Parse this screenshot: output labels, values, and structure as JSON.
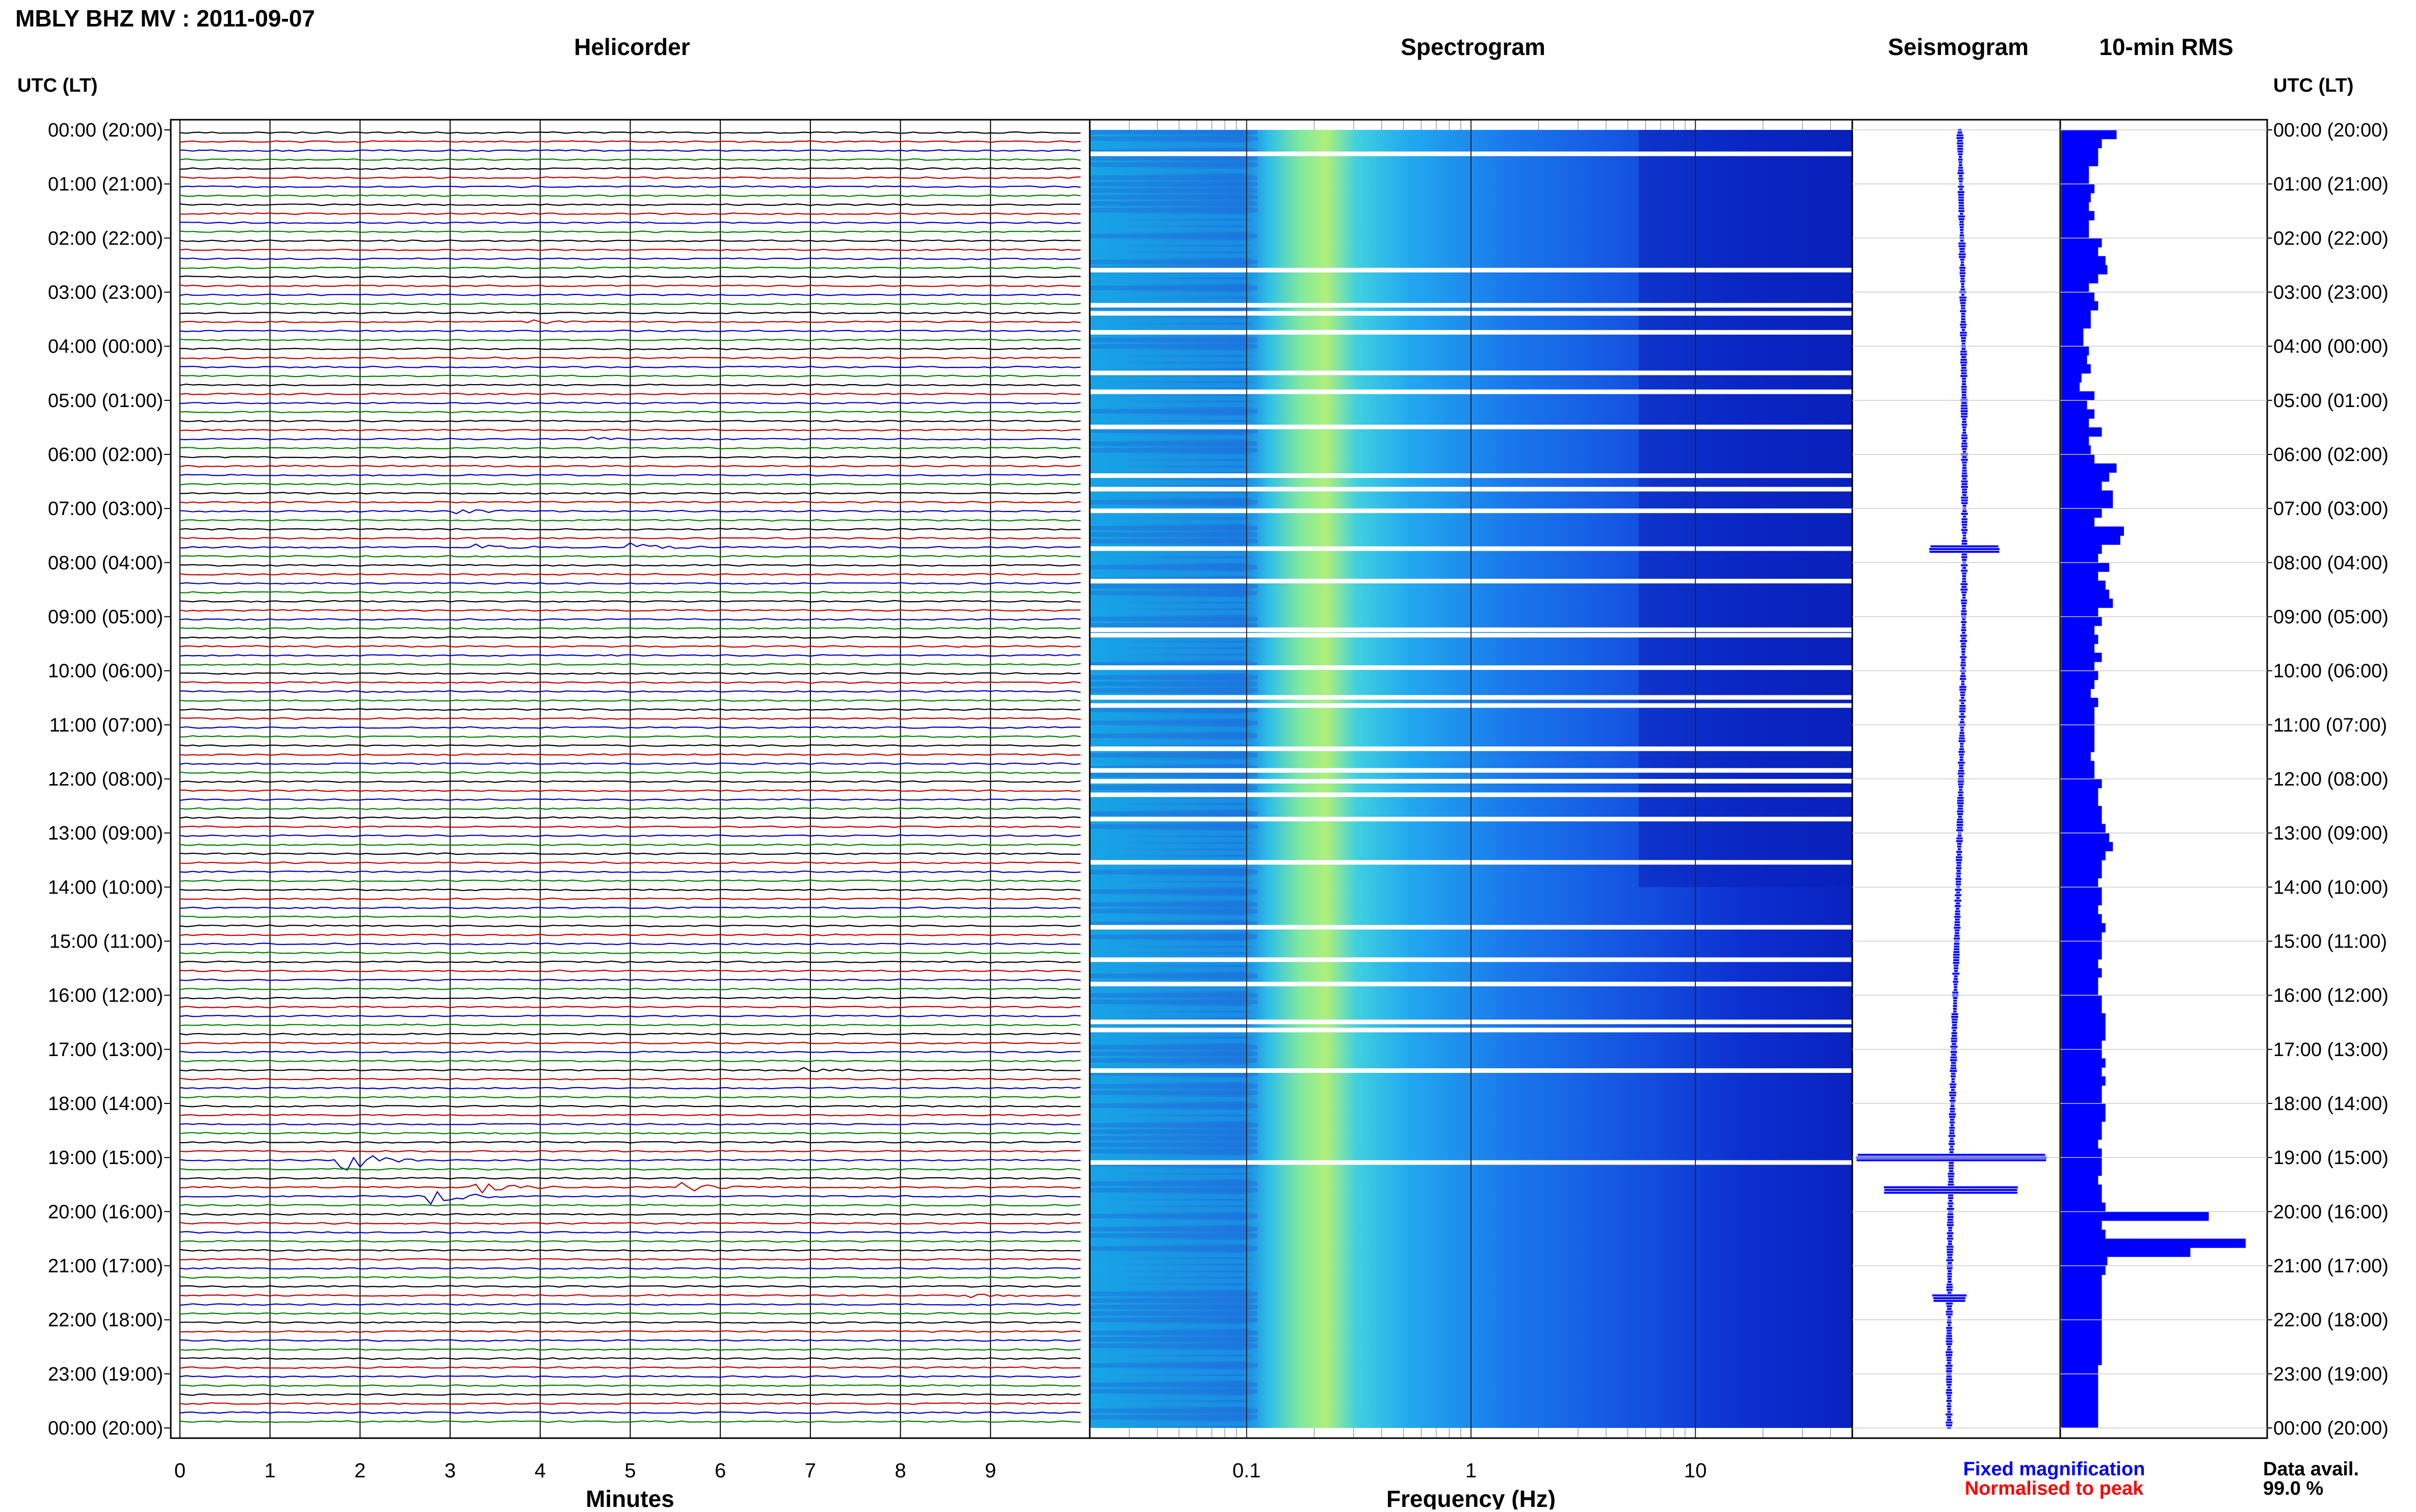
{
  "title": "MBLY BHZ MV : 2011-09-07",
  "headers": {
    "helicorder": "Helicorder",
    "spectrogram": "Spectrogram",
    "seismogram": "Seismogram",
    "rms": "10-min RMS"
  },
  "utc_label": "UTC (LT)",
  "time_labels": [
    "00:00 (20:00)",
    "01:00 (21:00)",
    "02:00 (22:00)",
    "03:00 (23:00)",
    "04:00 (00:00)",
    "05:00 (01:00)",
    "06:00 (02:00)",
    "07:00 (03:00)",
    "08:00 (04:00)",
    "09:00 (05:00)",
    "10:00 (06:00)",
    "11:00 (07:00)",
    "12:00 (08:00)",
    "13:00 (09:00)",
    "14:00 (10:00)",
    "15:00 (11:00)",
    "16:00 (12:00)",
    "17:00 (13:00)",
    "18:00 (14:00)",
    "19:00 (15:00)",
    "20:00 (16:00)",
    "21:00 (17:00)",
    "22:00 (18:00)",
    "23:00 (19:00)",
    "00:00 (20:00)"
  ],
  "x_axis": {
    "helicorder_label": "Minutes",
    "helicorder_ticks": [
      "0",
      "1",
      "2",
      "3",
      "4",
      "5",
      "6",
      "7",
      "8",
      "9"
    ],
    "spectrogram_label": "Frequency (Hz)",
    "spectrogram_ticks": [
      "0.1",
      "1",
      "10"
    ]
  },
  "legend": {
    "fixed": "Fixed magnification",
    "normalised": "Normalised to peak",
    "fixed_color": "#0000ff",
    "normalised_color": "#ff0000"
  },
  "availability": {
    "label": "Data avail.",
    "value": "99.0 %"
  },
  "colors": {
    "trace_cycle": [
      "#000000",
      "#c00000",
      "#0000c0",
      "#008000"
    ],
    "rms_bar": "#0000ff",
    "seismogram": "#0000ff"
  },
  "chart_data": [
    {
      "type": "line",
      "name": "helicorder",
      "x_unit": "minutes",
      "xlim": [
        0,
        10
      ],
      "rows_per_hour": 6,
      "events": [
        {
          "hour": 3.5,
          "minute": 3.9,
          "amp": 0.6
        },
        {
          "hour": 5.6,
          "minute": 4.6,
          "amp": 0.5
        },
        {
          "hour": 7.0,
          "minute": 3.1,
          "amp": 0.8
        },
        {
          "hour": 7.67,
          "minute": 3.2,
          "amp": 1.2
        },
        {
          "hour": 7.67,
          "minute": 5.0,
          "amp": 1.4
        },
        {
          "hour": 17.33,
          "minute": 6.9,
          "amp": 0.8
        },
        {
          "hour": 19.0,
          "minute": 1.8,
          "amp": 4.5
        },
        {
          "hour": 19.67,
          "minute": 2.8,
          "amp": 3.0
        },
        {
          "hour": 19.5,
          "minute": 3.3,
          "amp": 2.5
        },
        {
          "hour": 19.5,
          "minute": 5.6,
          "amp": 1.5
        },
        {
          "hour": 21.5,
          "minute": 8.8,
          "amp": 0.6
        }
      ]
    },
    {
      "type": "heatmap",
      "name": "spectrogram",
      "xscale": "log",
      "xlim": [
        0.02,
        50
      ],
      "ylim_hours": [
        0,
        24
      ],
      "peak_band_hz": [
        0.15,
        0.3
      ],
      "gap_hours": [
        0.4,
        2.55,
        3.2,
        3.35,
        3.7,
        4.45,
        4.8,
        5.45,
        6.35,
        6.6,
        7.0,
        7.7,
        8.3,
        9.2,
        9.3,
        9.9,
        10.45,
        10.6,
        11.4,
        11.8,
        12.0,
        12.25,
        12.7,
        13.5,
        14.7,
        15.3,
        15.75,
        16.45,
        16.6,
        17.35,
        19.05
      ]
    },
    {
      "type": "line",
      "name": "seismogram",
      "ylim_hours": [
        0,
        24
      ],
      "events": [
        {
          "hour": 7.75,
          "amp": 0.35
        },
        {
          "hour": 19.0,
          "amp": 1.0
        },
        {
          "hour": 19.6,
          "amp": 0.7
        },
        {
          "hour": 21.6,
          "amp": 0.15
        }
      ]
    },
    {
      "type": "bar",
      "name": "10-min RMS",
      "ylim_hours": [
        0,
        24
      ],
      "bin_minutes": 10,
      "values": [
        0.3,
        0.22,
        0.2,
        0.2,
        0.15,
        0.15,
        0.18,
        0.16,
        0.15,
        0.18,
        0.15,
        0.15,
        0.22,
        0.2,
        0.24,
        0.25,
        0.2,
        0.15,
        0.18,
        0.2,
        0.16,
        0.16,
        0.12,
        0.12,
        0.15,
        0.14,
        0.16,
        0.11,
        0.1,
        0.18,
        0.14,
        0.18,
        0.15,
        0.22,
        0.15,
        0.16,
        0.18,
        0.3,
        0.26,
        0.22,
        0.28,
        0.28,
        0.22,
        0.18,
        0.34,
        0.32,
        0.22,
        0.2,
        0.26,
        0.2,
        0.24,
        0.26,
        0.28,
        0.2,
        0.22,
        0.18,
        0.2,
        0.18,
        0.22,
        0.18,
        0.2,
        0.18,
        0.16,
        0.2,
        0.18,
        0.18,
        0.18,
        0.18,
        0.18,
        0.16,
        0.18,
        0.18,
        0.22,
        0.2,
        0.2,
        0.22,
        0.22,
        0.24,
        0.26,
        0.28,
        0.24,
        0.22,
        0.22,
        0.2,
        0.22,
        0.22,
        0.2,
        0.22,
        0.24,
        0.22,
        0.22,
        0.22,
        0.2,
        0.22,
        0.2,
        0.2,
        0.22,
        0.22,
        0.24,
        0.24,
        0.24,
        0.22,
        0.22,
        0.24,
        0.22,
        0.24,
        0.22,
        0.22,
        0.24,
        0.24,
        0.22,
        0.22,
        0.2,
        0.22,
        0.22,
        0.22,
        0.2,
        0.22,
        0.22,
        0.24,
        0.8,
        0.22,
        0.24,
        1.0,
        0.7,
        0.25,
        0.24,
        0.22,
        0.22,
        0.22,
        0.22,
        0.22,
        0.22,
        0.22,
        0.22,
        0.22,
        0.22,
        0.2,
        0.2,
        0.2,
        0.2,
        0.2,
        0.2,
        0.2
      ]
    }
  ]
}
